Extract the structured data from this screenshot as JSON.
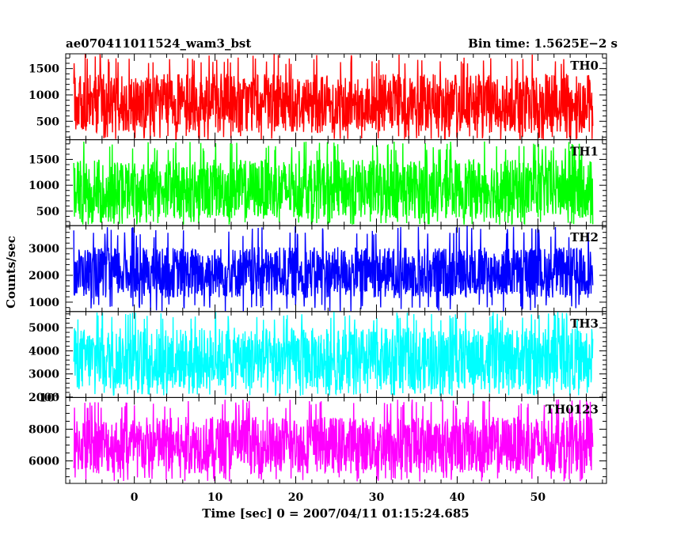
{
  "chart_data": {
    "type": "line",
    "title": "ae070411011524_wam3_bst",
    "subtitle": "Bin time: 1.5625E−2 s",
    "xlabel": "Time [sec] 0 = 2007/04/11 01:15:24.685",
    "ylabel": "Counts/sec",
    "xlim": [
      -8.5,
      58.5
    ],
    "data_x_range": [
      -7.5,
      56.8
    ],
    "x_ticks": [
      0,
      10,
      20,
      30,
      40,
      50
    ],
    "x_tick_labels": [
      "0",
      "10",
      "20",
      "30",
      "40",
      "50"
    ],
    "x_minor_step": 2,
    "grid": false,
    "panels": [
      {
        "name": "TH0",
        "color": "#ff0000",
        "ylim": [
          150,
          1780
        ],
        "y_ticks": [
          500,
          1000,
          1500
        ],
        "y_tick_labels": [
          "500",
          "1000",
          "1500"
        ],
        "y_minor_step": 100,
        "typical_range": [
          280,
          1400
        ],
        "peak_range": [
          150,
          1780
        ]
      },
      {
        "name": "TH1",
        "color": "#00ff00",
        "ylim": [
          220,
          1880
        ],
        "y_ticks": [
          500,
          1000,
          1500
        ],
        "y_tick_labels": [
          "500",
          "1000",
          "1500"
        ],
        "y_minor_step": 100,
        "typical_range": [
          350,
          1500
        ],
        "peak_range": [
          240,
          1850
        ]
      },
      {
        "name": "TH2",
        "color": "#0000ff",
        "ylim": [
          650,
          3850
        ],
        "y_ticks": [
          1000,
          2000,
          3000
        ],
        "y_tick_labels": [
          "1000",
          "2000",
          "3000"
        ],
        "y_minor_step": 200,
        "typical_range": [
          1150,
          3050
        ],
        "peak_range": [
          650,
          3850
        ]
      },
      {
        "name": "TH3",
        "color": "#00ffff",
        "ylim": [
          1980,
          5700
        ],
        "y_ticks": [
          2000,
          3000,
          4000,
          5000
        ],
        "y_tick_labels": [
          "2000",
          "3000",
          "4000",
          "5000"
        ],
        "y_minor_step": 200,
        "typical_range": [
          2300,
          5000
        ],
        "peak_range": [
          2050,
          5700
        ]
      },
      {
        "name": "TH0123",
        "color": "#ff00ff",
        "ylim": [
          4580,
          10000
        ],
        "y_ticks": [
          6000,
          8000,
          10000
        ],
        "y_tick_labels": [
          "6000",
          "8000",
          "10⁴"
        ],
        "y_minor_step": 500,
        "typical_range": [
          5200,
          8800
        ],
        "peak_range": [
          4700,
          9900
        ]
      }
    ]
  }
}
